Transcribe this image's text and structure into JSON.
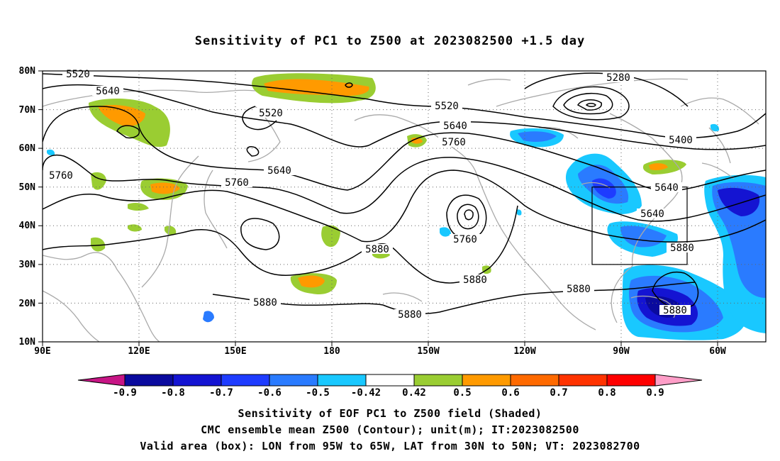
{
  "title": "Sensitivity of PC1 to Z500 at 2023082500 +1.5 day",
  "captions": [
    "Sensitivity of EOF PC1 to Z500 field (Shaded)",
    "CMC ensemble mean Z500 (Contour); unit(m); IT:2023082500",
    "Valid area (box): LON from 95W to 65W, LAT from 30N to 50N; VT: 2023082700"
  ],
  "lat_labels": [
    "80N",
    "70N",
    "60N",
    "50N",
    "40N",
    "30N",
    "20N",
    "10N"
  ],
  "lon_labels": [
    "90E",
    "120E",
    "150E",
    "180",
    "150W",
    "120W",
    "90W",
    "60W"
  ],
  "colorbar": {
    "labels": [
      "-0.9",
      "-0.8",
      "-0.7",
      "-0.6",
      "-0.5",
      "-0.42",
      "0.42",
      "0.5",
      "0.6",
      "0.7",
      "0.8",
      "0.9"
    ],
    "colors": [
      "#c71585",
      "#0a0a9e",
      "#1414d2",
      "#1e3cff",
      "#2a7bff",
      "#19c8ff",
      "#ffffff",
      "#9acd32",
      "#ff9a00",
      "#ff6a00",
      "#ff3300",
      "#ff0000",
      "#ff9ec8"
    ]
  },
  "contour_labels": [
    "5520",
    "5640",
    "5520",
    "5640",
    "5760",
    "5760",
    "5640",
    "5520",
    "5640",
    "5760",
    "5280",
    "5400",
    "5640",
    "5760",
    "5760",
    "5880",
    "5880",
    "5880",
    "5880",
    "5880",
    "5880",
    "5880"
  ],
  "valid_box": {
    "lon_min": -95,
    "lon_max": -65,
    "lat_min": 30,
    "lat_max": 50
  }
}
